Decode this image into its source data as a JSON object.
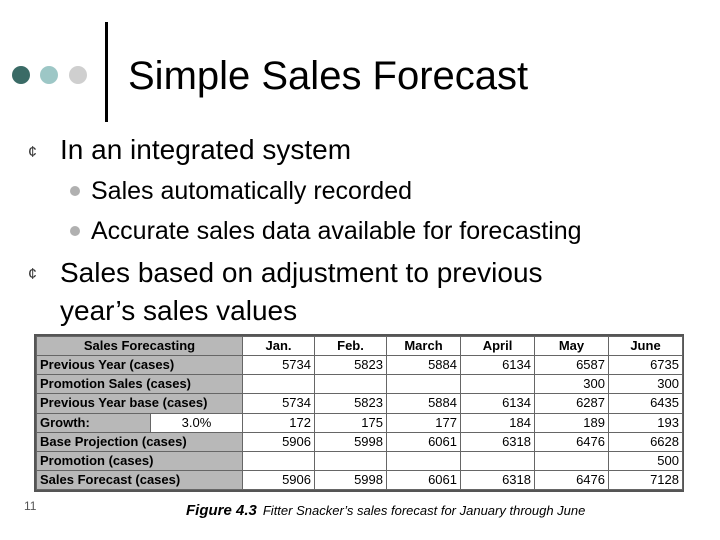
{
  "title": "Simple Sales Forecast",
  "bullets": [
    {
      "text": "In an integrated system",
      "sub": [
        "Sales automatically recorded",
        "Accurate sales data available for forecasting"
      ]
    },
    {
      "lines": [
        "Sales based on adjustment to previous",
        "year’s sales values"
      ]
    }
  ],
  "bullet_glyph": "¢",
  "table": {
    "header_label": "Sales Forecasting",
    "months": [
      "Jan.",
      "Feb.",
      "March",
      "April",
      "May",
      "June"
    ],
    "rows": [
      {
        "label": "Previous Year (cases)",
        "values": [
          "5734",
          "5823",
          "5884",
          "6134",
          "6587",
          "6735"
        ]
      },
      {
        "label": "Promotion Sales (cases)",
        "values": [
          "",
          "",
          "",
          "",
          "300",
          "300"
        ]
      },
      {
        "label": "Previous Year base (cases)",
        "values": [
          "5734",
          "5823",
          "5884",
          "6134",
          "6287",
          "6435"
        ]
      },
      {
        "label": "Growth:",
        "rate": "3.0%",
        "values": [
          "172",
          "175",
          "177",
          "184",
          "189",
          "193"
        ]
      },
      {
        "label": "Base Projection (cases)",
        "values": [
          "5906",
          "5998",
          "6061",
          "6318",
          "6476",
          "6628"
        ]
      },
      {
        "label": "Promotion (cases)",
        "values": [
          "",
          "",
          "",
          "",
          "",
          "500"
        ]
      },
      {
        "label": "Sales Forecast (cases)",
        "values": [
          "5906",
          "5998",
          "6061",
          "6318",
          "6476",
          "7128"
        ]
      }
    ]
  },
  "slide_number": "11",
  "caption": {
    "figure": "Figure 4.3",
    "text": "Fitter Snacker’s sales forecast for January through June"
  },
  "colors": {
    "dot1": "#3a6b66",
    "dot2": "#9dc7c6",
    "dot3": "#cfcfcf",
    "table_label_bg": "#b8b8b8"
  }
}
